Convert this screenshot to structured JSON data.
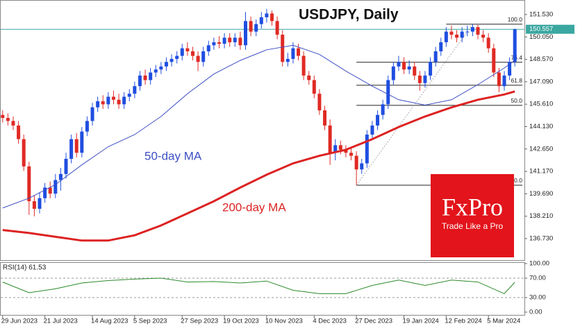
{
  "chart_data": [
    {
      "type": "candlestick",
      "title": "USDJPY, Daily",
      "categories": [
        "29 Jun 2023",
        null,
        null,
        null,
        null,
        null,
        null,
        null,
        "21 Jul 2023",
        null,
        null,
        null,
        null,
        null,
        null,
        null,
        null,
        "14 Aug 2023",
        null,
        null,
        null,
        null,
        null,
        null,
        null,
        "5 Sep 2023",
        null,
        null,
        null,
        null,
        null,
        null,
        null,
        null,
        "27 Sep 2023",
        null,
        null,
        null,
        null,
        null,
        null,
        null,
        "19 Oct 2023",
        null,
        null,
        null,
        null,
        null,
        null,
        null,
        "10 Nov 2023",
        null,
        null,
        null,
        null,
        null,
        null,
        null,
        null,
        "4 Dec 2023",
        null,
        null,
        null,
        null,
        null,
        null,
        null,
        "27 Dec 2023",
        null,
        null,
        null,
        null,
        null,
        null,
        null,
        null,
        "19 Jan 2024",
        null,
        null,
        null,
        null,
        null,
        null,
        null,
        "12 Feb 2024",
        null,
        null,
        null,
        null,
        null,
        null,
        null,
        "5 Mar 2024",
        null,
        null,
        null,
        null,
        null
      ],
      "open": [
        144.9,
        144.7,
        144.5,
        144.2,
        143.3,
        141.5,
        139.2,
        138.7,
        139.4,
        140.1,
        139.7,
        140.6,
        141.0,
        142.0,
        143.3,
        142.4,
        143.8,
        144.5,
        145.4,
        145.8,
        145.6,
        146.1,
        145.9,
        145.6,
        146.1,
        146.3,
        146.8,
        147.5,
        147.2,
        147.7,
        147.9,
        148.1,
        148.4,
        148.6,
        148.8,
        149.3,
        149.1,
        148.8,
        148.4,
        149.1,
        149.5,
        149.7,
        149.6,
        150.0,
        149.7,
        150.0,
        149.5,
        151.1,
        150.4,
        150.9,
        151.35,
        151.6,
        151.1,
        150.2,
        148.4,
        148.6,
        149.3,
        148.8,
        147.5,
        147.2,
        146.3,
        145.2,
        144.2,
        142.4,
        142.9,
        142.6,
        142.4,
        142.2,
        141.3,
        141.7,
        143.6,
        144.2,
        144.9,
        145.6,
        147.2,
        148.1,
        148.4,
        147.9,
        148.1,
        147.5,
        147.0,
        147.5,
        148.4,
        149.1,
        149.7,
        150.4,
        150.2,
        150.0,
        150.4,
        150.4,
        150.7,
        150.2,
        150.0,
        149.3,
        147.7,
        146.8,
        147.5,
        148.4
      ],
      "high": [
        145.2,
        145.0,
        144.8,
        144.5,
        143.6,
        141.8,
        139.6,
        139.8,
        140.4,
        140.5,
        141.0,
        141.4,
        142.4,
        143.6,
        143.7,
        144.1,
        144.8,
        145.7,
        146.1,
        146.2,
        146.4,
        146.5,
        146.3,
        146.4,
        146.6,
        147.1,
        147.8,
        147.9,
        148.0,
        148.2,
        148.4,
        148.7,
        148.9,
        149.1,
        149.6,
        149.7,
        149.4,
        149.1,
        149.4,
        149.8,
        150.0,
        150.1,
        150.3,
        150.3,
        150.3,
        150.4,
        151.7,
        151.4,
        151.2,
        151.7,
        151.9,
        151.8,
        151.4,
        150.5,
        149.0,
        149.7,
        149.6,
        149.1,
        147.8,
        147.5,
        146.6,
        145.5,
        144.6,
        143.3,
        143.2,
        142.9,
        142.7,
        142.5,
        142.0,
        143.9,
        144.5,
        145.2,
        145.9,
        147.5,
        148.4,
        148.8,
        148.7,
        148.5,
        148.4,
        147.8,
        147.8,
        148.7,
        149.4,
        150.0,
        150.7,
        150.8,
        150.5,
        150.7,
        150.8,
        150.89,
        150.85,
        150.5,
        150.3,
        149.6,
        148.0,
        147.8,
        148.7,
        150.6
      ],
      "low": [
        144.4,
        144.2,
        143.9,
        143.0,
        141.2,
        138.3,
        138.2,
        138.4,
        139.1,
        139.4,
        139.4,
        139.9,
        140.7,
        141.7,
        142.1,
        142.1,
        143.5,
        144.2,
        145.1,
        145.3,
        145.3,
        145.6,
        145.3,
        145.3,
        145.8,
        146.0,
        146.5,
        146.9,
        146.9,
        147.4,
        147.6,
        147.8,
        148.1,
        148.3,
        148.5,
        148.8,
        148.5,
        147.8,
        148.1,
        148.8,
        149.2,
        149.3,
        149.3,
        149.4,
        149.4,
        149.2,
        149.2,
        150.1,
        150.1,
        150.6,
        151.0,
        150.8,
        149.9,
        148.1,
        148.1,
        148.3,
        148.5,
        147.2,
        146.9,
        146.0,
        144.9,
        143.9,
        141.6,
        141.9,
        142.3,
        142.1,
        141.9,
        140.26,
        141.0,
        141.4,
        143.3,
        143.9,
        144.6,
        145.3,
        146.9,
        147.8,
        147.6,
        147.6,
        147.2,
        146.5,
        146.7,
        147.2,
        148.1,
        148.8,
        149.4,
        149.9,
        149.7,
        149.7,
        150.1,
        150.1,
        149.9,
        149.7,
        149.0,
        147.4,
        146.4,
        146.5,
        147.2,
        148.1
      ],
      "close": [
        144.7,
        144.5,
        144.2,
        143.3,
        141.5,
        139.2,
        138.7,
        139.4,
        140.1,
        139.7,
        140.6,
        141.0,
        142.0,
        143.3,
        142.4,
        143.8,
        144.5,
        145.4,
        145.8,
        145.6,
        146.1,
        145.9,
        145.6,
        146.1,
        146.3,
        146.8,
        147.5,
        147.2,
        147.7,
        147.9,
        148.1,
        148.4,
        148.6,
        148.8,
        149.3,
        149.1,
        148.8,
        148.4,
        149.1,
        149.5,
        149.7,
        149.6,
        150.0,
        149.7,
        150.0,
        149.5,
        151.1,
        150.4,
        150.9,
        151.35,
        151.6,
        151.1,
        150.2,
        148.4,
        148.6,
        149.3,
        148.8,
        147.5,
        147.2,
        146.3,
        145.2,
        144.2,
        142.4,
        142.9,
        142.6,
        142.4,
        142.2,
        141.3,
        141.7,
        143.6,
        144.2,
        144.9,
        145.6,
        147.2,
        148.1,
        148.4,
        147.9,
        148.1,
        147.5,
        147.0,
        147.5,
        148.4,
        149.1,
        149.7,
        150.4,
        150.2,
        150.0,
        150.4,
        150.4,
        150.7,
        150.2,
        150.0,
        149.3,
        147.7,
        146.8,
        147.5,
        148.4,
        150.557
      ],
      "up_color": "#1f4ee0",
      "down_color": "#e02a24",
      "series": [
        {
          "name": "50-day MA",
          "color": "#3d4fc4",
          "x": [
            0,
            5,
            10,
            15,
            20,
            25,
            30,
            35,
            40,
            45,
            50,
            55,
            60,
            65,
            70,
            75,
            80,
            85,
            90,
            95,
            97
          ],
          "values": [
            138.75,
            139.4,
            140.3,
            141.6,
            142.8,
            143.6,
            144.8,
            146.3,
            147.6,
            148.5,
            149.2,
            149.5,
            148.9,
            147.8,
            146.8,
            145.9,
            145.55,
            145.9,
            146.9,
            148.0,
            148.5
          ]
        },
        {
          "name": "200-day MA",
          "color": "#dd2222",
          "x": [
            0,
            5,
            10,
            15,
            20,
            25,
            30,
            35,
            40,
            45,
            50,
            55,
            60,
            65,
            70,
            75,
            80,
            85,
            90,
            95,
            97
          ],
          "values": [
            137.3,
            137.1,
            136.85,
            136.6,
            136.6,
            136.95,
            137.6,
            138.4,
            139.2,
            140.1,
            140.95,
            141.7,
            142.2,
            142.6,
            143.3,
            144.1,
            144.8,
            145.4,
            145.9,
            146.25,
            146.45
          ]
        }
      ],
      "fib_levels": [
        {
          "value": 150.89,
          "label": "100.0"
        },
        {
          "value": 148.38,
          "label": "76.4"
        },
        {
          "value": 146.86,
          "label": "61.8"
        },
        {
          "value": 145.53,
          "label": "50.0"
        },
        {
          "value": 140.26,
          "label": "0.0"
        }
      ],
      "last_price": {
        "value": 150.557,
        "label": "150.557"
      },
      "ylim": [
        135.31,
        152.49
      ],
      "yticks": [
        {
          "value": 151.53,
          "label": "151.530"
        },
        {
          "value": 150.05,
          "label": "150.050"
        },
        {
          "value": 148.57,
          "label": "148.570"
        },
        {
          "value": 147.09,
          "label": "147.090"
        },
        {
          "value": 145.61,
          "label": "145.610"
        },
        {
          "value": 144.13,
          "label": "144.130"
        },
        {
          "value": 142.65,
          "label": "142.650"
        },
        {
          "value": 141.17,
          "label": "141.170"
        },
        {
          "value": 139.69,
          "label": "139.690"
        },
        {
          "value": 138.21,
          "label": "138.210"
        },
        {
          "value": 136.73,
          "label": "136.730"
        }
      ]
    },
    {
      "type": "line",
      "title": "RSI(14) 61.53",
      "color": "#2a8a2a",
      "x": [
        0,
        5,
        10,
        15,
        20,
        25,
        30,
        35,
        40,
        45,
        50,
        55,
        60,
        65,
        70,
        75,
        80,
        85,
        90,
        95,
        97
      ],
      "values": [
        62,
        40,
        48,
        60,
        65,
        68,
        70,
        62,
        63,
        60,
        64,
        45,
        38,
        38,
        55,
        66,
        55,
        66,
        62,
        38,
        61.53
      ],
      "ylim": [
        0,
        100
      ],
      "yticks": [
        {
          "value": 100,
          "label": "100.00"
        },
        {
          "value": 70,
          "label": "70.00"
        },
        {
          "value": 30,
          "label": "30.00"
        },
        {
          "value": 0,
          "label": "0.00"
        }
      ]
    }
  ],
  "brand": {
    "name": "FxPro",
    "tagline": "Trade Like a Pro"
  }
}
